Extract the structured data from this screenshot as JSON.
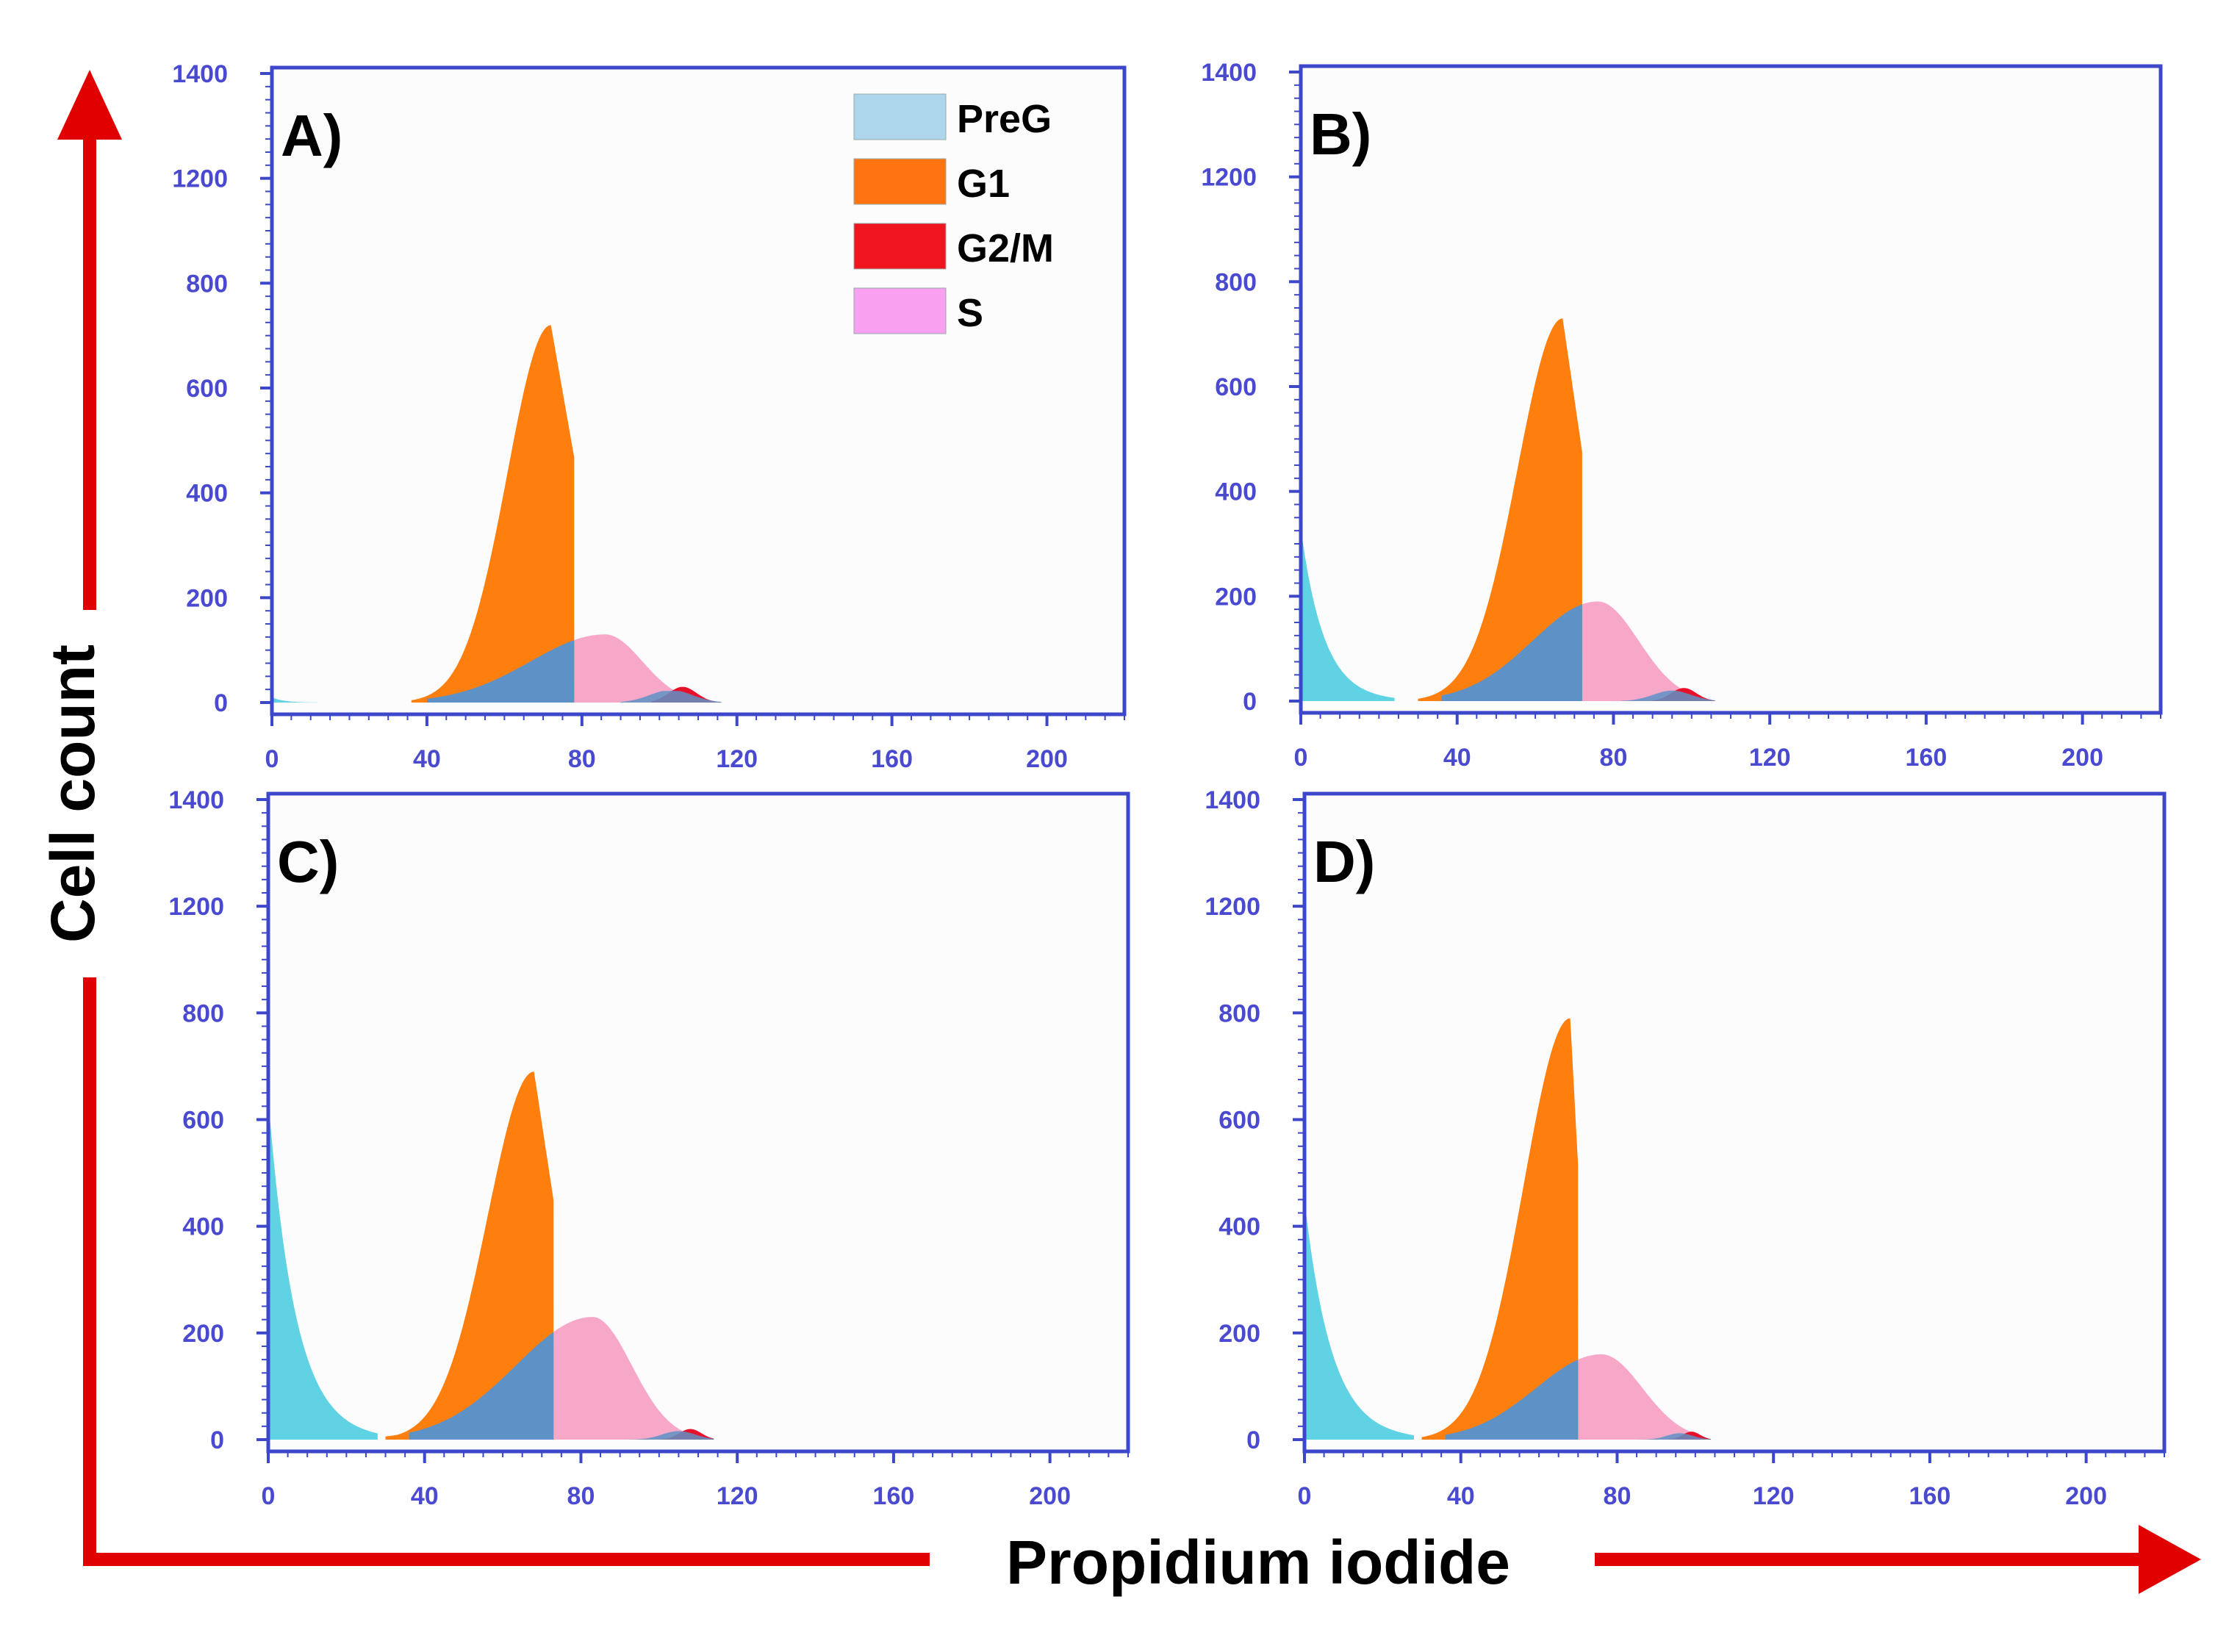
{
  "figure_axes": {
    "x_title": "Propidium iodide",
    "y_title": "Cell count",
    "arrow_color": "#e00000"
  },
  "colors": {
    "frame": "#3d47c9",
    "tick_text": "#4a4ad0",
    "PreG": "#5fd3e3",
    "G1": "#ff7f0e",
    "G2/M": "#e8102a",
    "S": "#f7a8c8",
    "overlap": "#5e92c6",
    "legend_PreG": "#add6ec",
    "legend_G1": "#ff7411",
    "legend_G2M": "#f0141e",
    "legend_S": "#f9a0f0"
  },
  "legend": [
    {
      "label": "PreG",
      "color_key": "legend_PreG"
    },
    {
      "label": "G1",
      "color_key": "legend_G1"
    },
    {
      "label": "G2/M",
      "color_key": "legend_G2M"
    },
    {
      "label": "S",
      "color_key": "legend_S"
    }
  ],
  "chart_data": [
    {
      "type": "area",
      "panel": "A)",
      "xlim": [
        0,
        220
      ],
      "ylim": [
        0,
        1400
      ],
      "x_ticks": [
        "0",
        "40",
        "80",
        "120",
        "160",
        "200"
      ],
      "y_ticks": [
        "0",
        "200",
        "400",
        "600",
        "800",
        "1200",
        "1400"
      ],
      "series": [
        {
          "name": "PreG",
          "peak_x": 0,
          "peak_y": 10,
          "width": 3
        },
        {
          "name": "G1",
          "peak_x": 72,
          "peak_y": 720,
          "start_x": 36,
          "end_x": 78
        },
        {
          "name": "S",
          "peak_x": 86,
          "peak_y": 130,
          "start_x": 40,
          "end_x": 108
        },
        {
          "name": "G2/M",
          "peak_x": 106,
          "peak_y": 30,
          "start_x": 98,
          "end_x": 116
        }
      ]
    },
    {
      "type": "area",
      "panel": "B)",
      "xlim": [
        0,
        220
      ],
      "ylim": [
        0,
        1400
      ],
      "x_ticks": [
        "0",
        "40",
        "80",
        "120",
        "160",
        "200"
      ],
      "y_ticks": [
        "0",
        "200",
        "400",
        "600",
        "800",
        "1200",
        "1400"
      ],
      "series": [
        {
          "name": "PreG",
          "peak_x": 0,
          "peak_y": 330,
          "width": 6
        },
        {
          "name": "G1",
          "peak_x": 67,
          "peak_y": 730,
          "start_x": 30,
          "end_x": 72
        },
        {
          "name": "S",
          "peak_x": 76,
          "peak_y": 190,
          "start_x": 36,
          "end_x": 100
        },
        {
          "name": "G2/M",
          "peak_x": 98,
          "peak_y": 25,
          "start_x": 90,
          "end_x": 106
        }
      ]
    },
    {
      "type": "area",
      "panel": "C)",
      "xlim": [
        0,
        220
      ],
      "ylim": [
        0,
        1400
      ],
      "x_ticks": [
        "0",
        "40",
        "80",
        "120",
        "160",
        "200"
      ],
      "y_ticks": [
        "0",
        "200",
        "400",
        "600",
        "800",
        "1200",
        "1400"
      ],
      "series": [
        {
          "name": "PreG",
          "peak_x": 0,
          "peak_y": 640,
          "width": 7
        },
        {
          "name": "G1",
          "peak_x": 68,
          "peak_y": 690,
          "start_x": 30,
          "end_x": 73
        },
        {
          "name": "S",
          "peak_x": 83,
          "peak_y": 230,
          "start_x": 36,
          "end_x": 106
        },
        {
          "name": "G2/M",
          "peak_x": 108,
          "peak_y": 20,
          "start_x": 100,
          "end_x": 114
        }
      ]
    },
    {
      "type": "area",
      "panel": "D)",
      "xlim": [
        0,
        220
      ],
      "ylim": [
        0,
        1400
      ],
      "x_ticks": [
        "0",
        "40",
        "80",
        "120",
        "160",
        "200"
      ],
      "y_ticks": [
        "0",
        "200",
        "400",
        "600",
        "800",
        "1200",
        "1400"
      ],
      "series": [
        {
          "name": "PreG",
          "peak_x": 0,
          "peak_y": 450,
          "width": 7
        },
        {
          "name": "G1",
          "peak_x": 68,
          "peak_y": 790,
          "start_x": 30,
          "end_x": 70
        },
        {
          "name": "S",
          "peak_x": 76,
          "peak_y": 160,
          "start_x": 36,
          "end_x": 100
        },
        {
          "name": "G2/M",
          "peak_x": 99,
          "peak_y": 15,
          "start_x": 93,
          "end_x": 104
        }
      ]
    }
  ]
}
